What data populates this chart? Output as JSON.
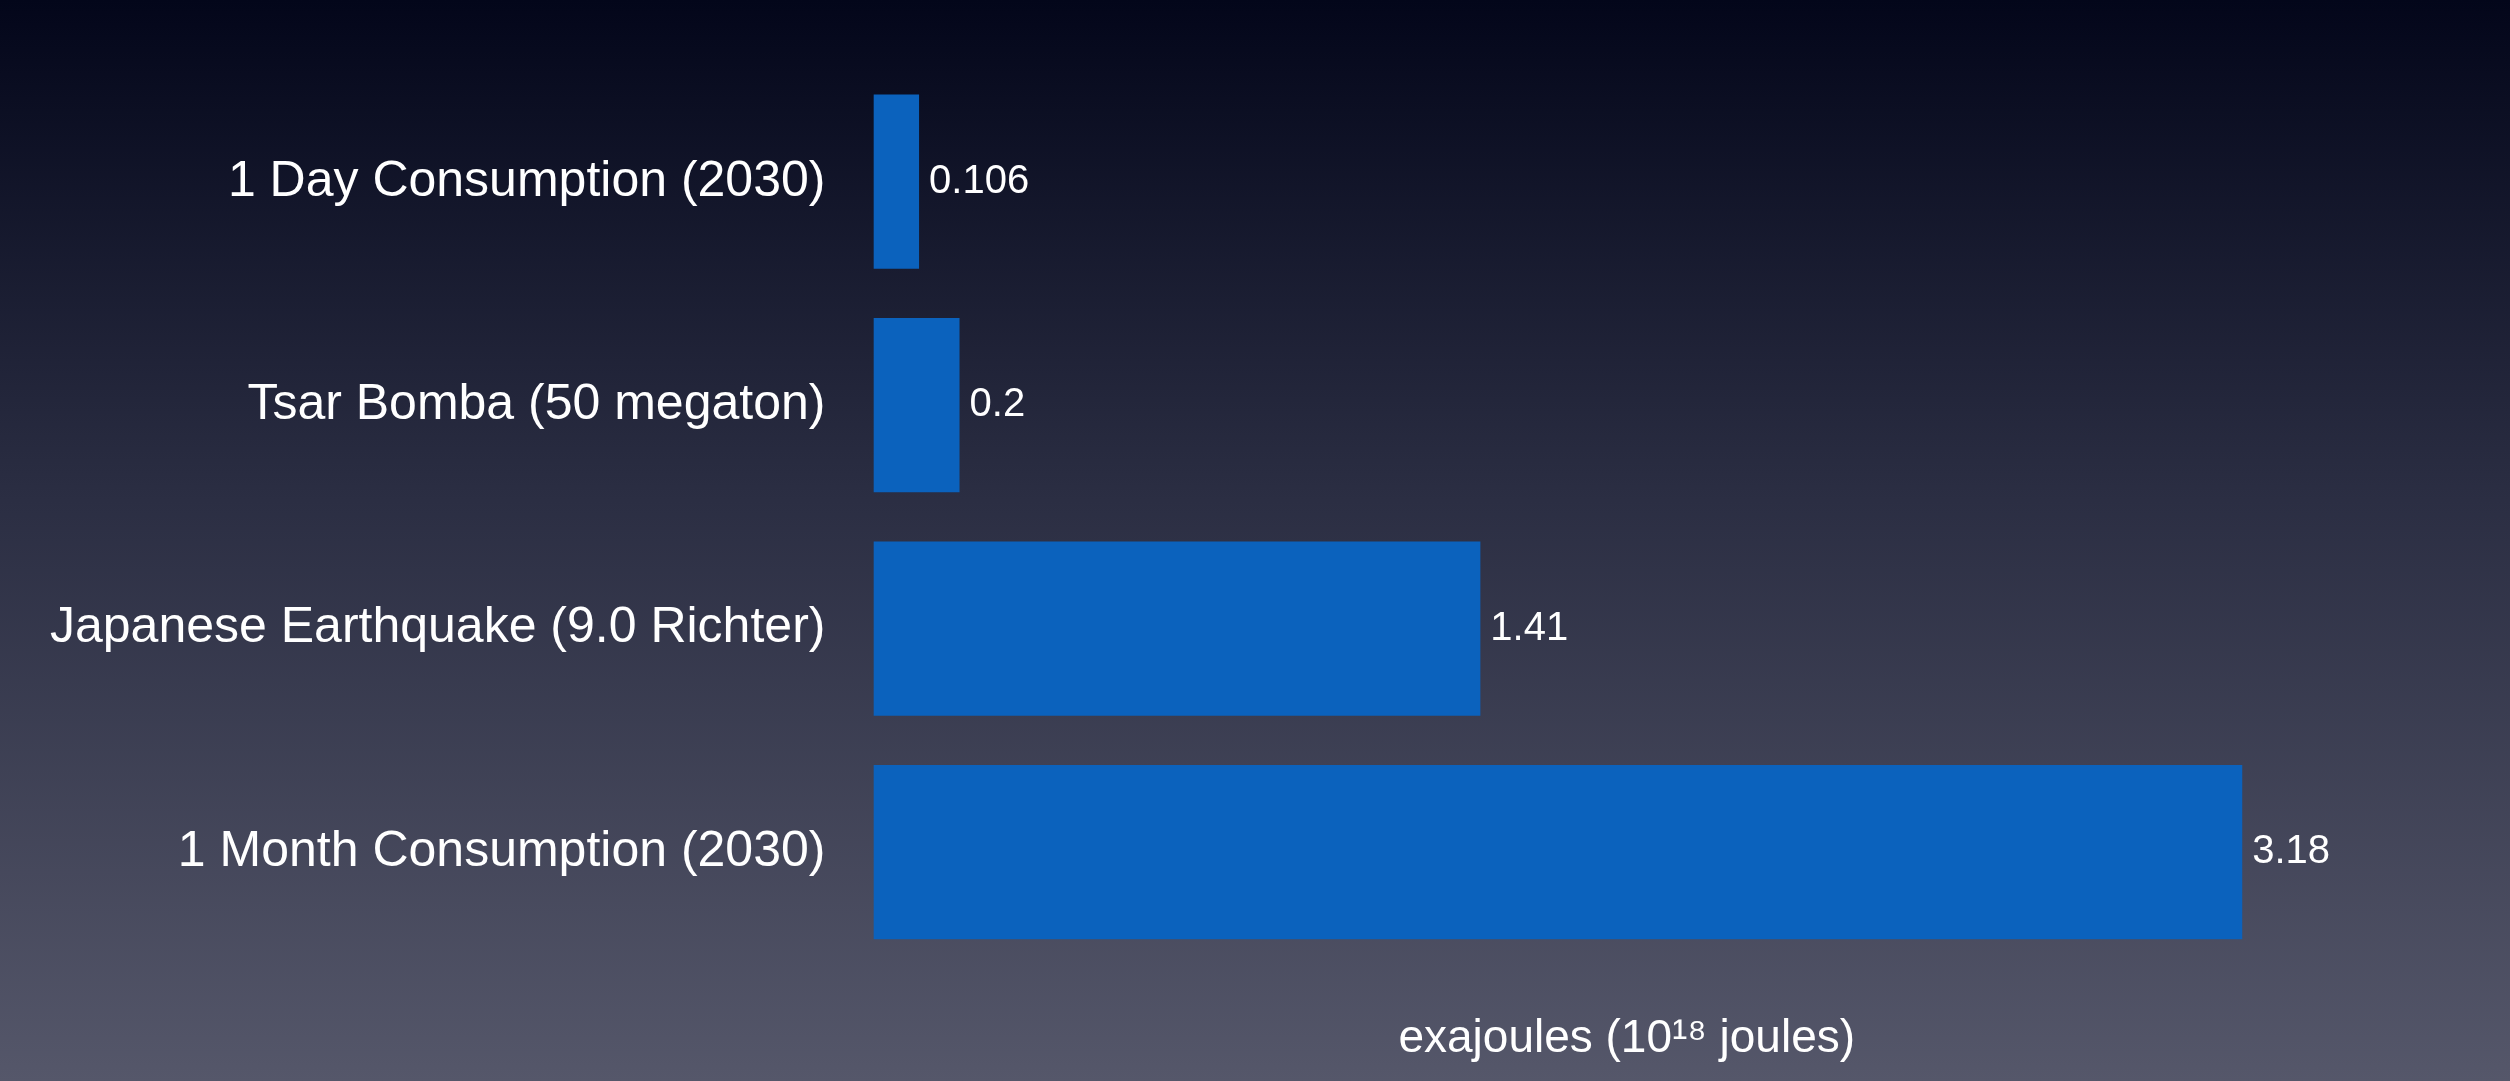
{
  "chart_data": {
    "type": "bar",
    "orientation": "horizontal",
    "categories": [
      "1 Day Consumption (2030)",
      "Tsar Bomba (50 megaton)",
      "Japanese Earthquake (9.0 Richter)",
      "1 Month Consumption (2030)"
    ],
    "values": [
      0.106,
      0.2,
      1.41,
      3.18
    ],
    "color": "#0b62bd",
    "xlabel": "exajoules (10¹⁸ joules)",
    "data_labels": true,
    "grid": false,
    "legend": false,
    "tick_labels": "y"
  }
}
